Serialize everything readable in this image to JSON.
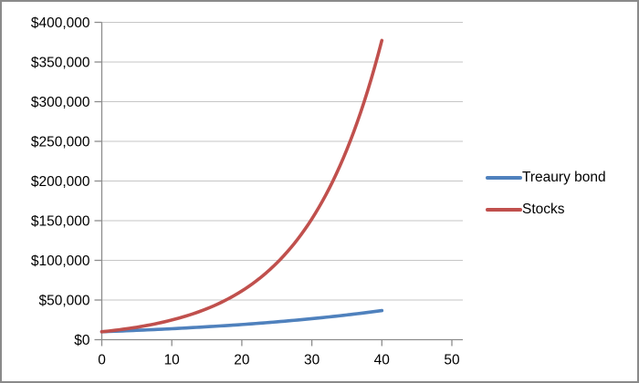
{
  "chart_data": {
    "type": "line",
    "title": "",
    "xlabel": "",
    "ylabel": "",
    "x": [
      0,
      5,
      10,
      15,
      20,
      25,
      30,
      35,
      40
    ],
    "series": [
      {
        "name": "Treaury bond",
        "color": "#4F81BD",
        "values": [
          10000,
          11800,
          13800,
          16300,
          19100,
          22500,
          26500,
          31200,
          36700
        ]
      },
      {
        "name": "Stocks",
        "color": "#C0504D",
        "values": [
          10000,
          15700,
          24800,
          39000,
          61400,
          96700,
          152200,
          239600,
          377200
        ]
      }
    ],
    "xlim": [
      0,
      50
    ],
    "ylim": [
      0,
      400000
    ],
    "x_ticks": [
      0,
      10,
      20,
      30,
      40,
      50
    ],
    "x_tick_labels": [
      "0",
      "10",
      "20",
      "30",
      "40",
      "50"
    ],
    "y_ticks": [
      0,
      50000,
      100000,
      150000,
      200000,
      250000,
      300000,
      350000,
      400000
    ],
    "y_tick_labels": [
      "$0",
      "$50,000",
      "$100,000",
      "$150,000",
      "$200,000",
      "$250,000",
      "$300,000",
      "$350,000",
      "$400,000"
    ],
    "grid": "horizontal",
    "legend_position": "right"
  },
  "colors": {
    "gridline": "#C6C6C6",
    "axis": "#8C8C8C",
    "text": "#000000",
    "border": "#8A8A8A",
    "background": "#FFFFFF"
  }
}
